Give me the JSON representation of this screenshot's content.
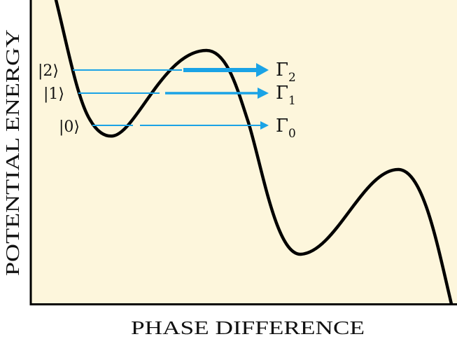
{
  "axes": {
    "x_label": "PHASE DIFFERENCE",
    "y_label": "POTENTIAL ENERGY"
  },
  "states": [
    {
      "label": "|2⟩",
      "symbol": "Γ",
      "subscript": "2",
      "emphasis": "thick"
    },
    {
      "label": "|1⟩",
      "symbol": "Γ",
      "subscript": "1",
      "emphasis": "medium"
    },
    {
      "label": "|0⟩",
      "symbol": "Γ",
      "subscript": "0",
      "emphasis": "thin"
    }
  ],
  "colors": {
    "background": "#fdf6dc",
    "curve": "#000000",
    "levels": "#1aa3e6",
    "axes": "#000000"
  }
}
